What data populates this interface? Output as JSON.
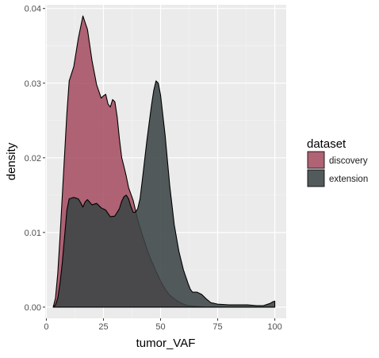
{
  "chart_data": {
    "type": "area",
    "title": "",
    "xlabel": "tumor_VAF",
    "ylabel": "density",
    "xlim": [
      -0.5,
      105
    ],
    "ylim": [
      -0.0015,
      0.0405
    ],
    "x_ticks": [
      0,
      25,
      50,
      75,
      100
    ],
    "x_tick_labels": [
      "0",
      "25",
      "50",
      "75",
      "100"
    ],
    "y_ticks": [
      0,
      0.01,
      0.02,
      0.03,
      0.04
    ],
    "y_tick_labels": [
      "0.00",
      "0.01",
      "0.02",
      "0.03",
      "0.04"
    ],
    "grid": true,
    "legend": {
      "title": "dataset",
      "position": "right"
    },
    "series": [
      {
        "name": "discovery",
        "color": "#a34a5e",
        "fill_opacity": 0.85,
        "points": [
          [
            3,
            0.0
          ],
          [
            4,
            0.0012
          ],
          [
            5,
            0.0045
          ],
          [
            6,
            0.0095
          ],
          [
            7,
            0.015
          ],
          [
            8,
            0.0205
          ],
          [
            9,
            0.026
          ],
          [
            10,
            0.0303
          ],
          [
            12,
            0.0322
          ],
          [
            14,
            0.036
          ],
          [
            16,
            0.039
          ],
          [
            18,
            0.0372
          ],
          [
            20,
            0.033
          ],
          [
            22,
            0.0298
          ],
          [
            24,
            0.028
          ],
          [
            25,
            0.0283
          ],
          [
            26,
            0.0285
          ],
          [
            27,
            0.0272
          ],
          [
            28,
            0.0268
          ],
          [
            29,
            0.0278
          ],
          [
            30,
            0.0275
          ],
          [
            31,
            0.0255
          ],
          [
            32,
            0.0225
          ],
          [
            33,
            0.02
          ],
          [
            34,
            0.0188
          ],
          [
            35,
            0.0175
          ],
          [
            36,
            0.016
          ],
          [
            38,
            0.0143
          ],
          [
            40,
            0.0117
          ],
          [
            42,
            0.0097
          ],
          [
            44,
            0.0078
          ],
          [
            46,
            0.0062
          ],
          [
            48,
            0.0048
          ],
          [
            50,
            0.0035
          ],
          [
            52,
            0.0024
          ],
          [
            54,
            0.0016
          ],
          [
            56,
            0.0011
          ],
          [
            58,
            0.0007
          ],
          [
            60,
            0.0004
          ],
          [
            62,
            0.0002
          ],
          [
            65,
            0.0001
          ],
          [
            70,
            0.0
          ],
          [
            80,
            0.0
          ],
          [
            90,
            0.0
          ],
          [
            100,
            0.0
          ]
        ]
      },
      {
        "name": "extension",
        "color": "#3b4445",
        "fill_opacity": 0.88,
        "points": [
          [
            3,
            0.0
          ],
          [
            4,
            0.0003
          ],
          [
            5,
            0.0012
          ],
          [
            6,
            0.0032
          ],
          [
            7,
            0.006
          ],
          [
            8,
            0.0095
          ],
          [
            9,
            0.013
          ],
          [
            10,
            0.0145
          ],
          [
            12,
            0.0147
          ],
          [
            14,
            0.0145
          ],
          [
            15,
            0.014
          ],
          [
            16,
            0.0134
          ],
          [
            17,
            0.0141
          ],
          [
            18,
            0.0144
          ],
          [
            20,
            0.0137
          ],
          [
            22,
            0.0139
          ],
          [
            24,
            0.0133
          ],
          [
            26,
            0.013
          ],
          [
            28,
            0.0121
          ],
          [
            30,
            0.0122
          ],
          [
            32,
            0.0132
          ],
          [
            33,
            0.0142
          ],
          [
            34,
            0.0148
          ],
          [
            35,
            0.015
          ],
          [
            36,
            0.0145
          ],
          [
            37,
            0.0135
          ],
          [
            38,
            0.0127
          ],
          [
            39,
            0.0127
          ],
          [
            40,
            0.0132
          ],
          [
            41,
            0.0145
          ],
          [
            42,
            0.017
          ],
          [
            44,
            0.0223
          ],
          [
            46,
            0.027
          ],
          [
            47,
            0.029
          ],
          [
            48,
            0.0303
          ],
          [
            49,
            0.03
          ],
          [
            50,
            0.0284
          ],
          [
            52,
            0.023
          ],
          [
            54,
            0.0163
          ],
          [
            56,
            0.011
          ],
          [
            58,
            0.0075
          ],
          [
            60,
            0.005
          ],
          [
            62,
            0.0032
          ],
          [
            63,
            0.0024
          ],
          [
            64,
            0.002
          ],
          [
            66,
            0.002
          ],
          [
            68,
            0.0017
          ],
          [
            70,
            0.0011
          ],
          [
            72,
            0.0006
          ],
          [
            75,
            0.0004
          ],
          [
            80,
            0.0003
          ],
          [
            85,
            0.0003
          ],
          [
            88,
            0.0003
          ],
          [
            92,
            0.0002
          ],
          [
            95,
            0.0002
          ],
          [
            98,
            0.0005
          ],
          [
            99,
            0.0007
          ],
          [
            100,
            0.0008
          ]
        ]
      }
    ]
  }
}
